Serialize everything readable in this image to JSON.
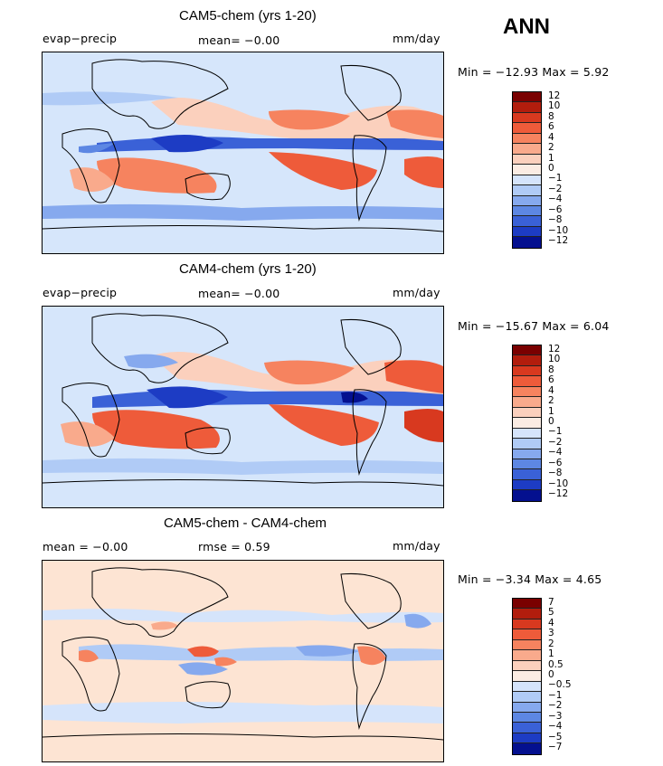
{
  "season": "ANN",
  "panels": [
    {
      "title": "CAM5-chem (yrs 1-20)",
      "left_label": "evap−precip",
      "center_label": "mean=  −0.00",
      "right_label": "mm/day",
      "minmax": "Min = −12.93 Max =   5.92",
      "levels": [
        "12",
        "10",
        "8",
        "6",
        "4",
        "2",
        "1",
        "0",
        "−1",
        "−2",
        "−4",
        "−6",
        "−8",
        "−10",
        "−12"
      ],
      "kind": "mean"
    },
    {
      "title": "CAM4-chem (yrs 1-20)",
      "left_label": "evap−precip",
      "center_label": "mean=  −0.00",
      "right_label": "mm/day",
      "minmax": "Min = −15.67 Max =   6.04",
      "levels": [
        "12",
        "10",
        "8",
        "6",
        "4",
        "2",
        "1",
        "0",
        "−1",
        "−2",
        "−4",
        "−6",
        "−8",
        "−10",
        "−12"
      ],
      "kind": "mean"
    },
    {
      "title": "CAM5-chem - CAM4-chem",
      "left_label": "mean =  −0.00",
      "center_label": "rmse =   0.59",
      "right_label": "mm/day",
      "minmax": "Min =  −3.34 Max =   4.65",
      "levels": [
        "7",
        "5",
        "4",
        "3",
        "2",
        "1",
        "0.5",
        "0",
        "−0.5",
        "−1",
        "−2",
        "−3",
        "−4",
        "−5",
        "−7"
      ],
      "kind": "diff"
    }
  ],
  "colors": {
    "bar": [
      "#7a0000",
      "#b21d0d",
      "#d8391f",
      "#ee5b3a",
      "#f6835f",
      "#f9aa8c",
      "#fbd0bd",
      "#fbece3",
      "#d5e4fb",
      "#b0cbf6",
      "#86a9ee",
      "#5d87e3",
      "#3a61d7",
      "#1d3cc4",
      "#04108f"
    ],
    "diff_bg": "#fde4d3",
    "mean_bg": "#d6e6fb"
  }
}
